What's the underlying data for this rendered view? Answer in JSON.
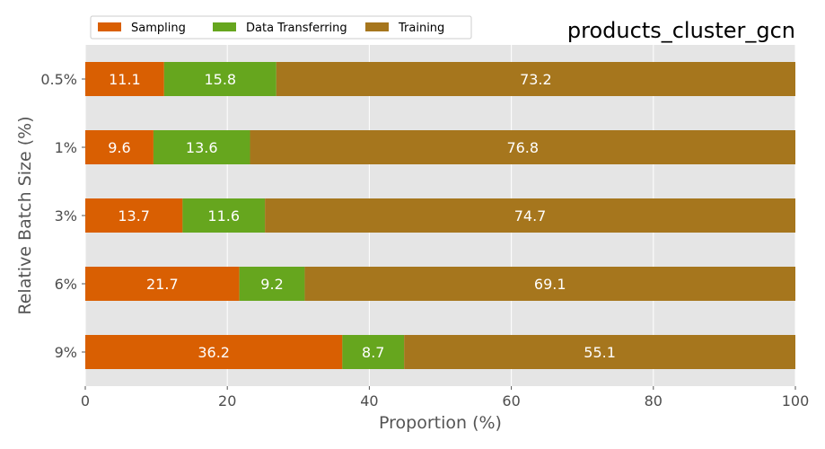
{
  "chart_data": {
    "type": "bar",
    "orientation": "horizontal",
    "stacked": true,
    "title": "products_cluster_gcn",
    "xlabel": "Proportion (%)",
    "ylabel": "Relative Batch Size (%)",
    "xlim": [
      0,
      100
    ],
    "xticks": [
      0,
      20,
      40,
      60,
      80,
      100
    ],
    "grid": true,
    "legend_position": "top-left",
    "categories": [
      "0.5%",
      "1%",
      "3%",
      "6%",
      "9%"
    ],
    "series": [
      {
        "name": "Sampling",
        "color": "#D95F02",
        "values": [
          11.1,
          9.6,
          13.7,
          21.7,
          36.2
        ]
      },
      {
        "name": "Data Transferring",
        "color": "#66A61E",
        "values": [
          15.8,
          13.6,
          11.6,
          9.2,
          8.7
        ]
      },
      {
        "name": "Training",
        "color": "#A6761D",
        "values": [
          73.2,
          76.8,
          74.7,
          69.1,
          55.1
        ]
      }
    ],
    "background_color": "#E5E5E5",
    "grid_color": "#FFFFFF"
  }
}
